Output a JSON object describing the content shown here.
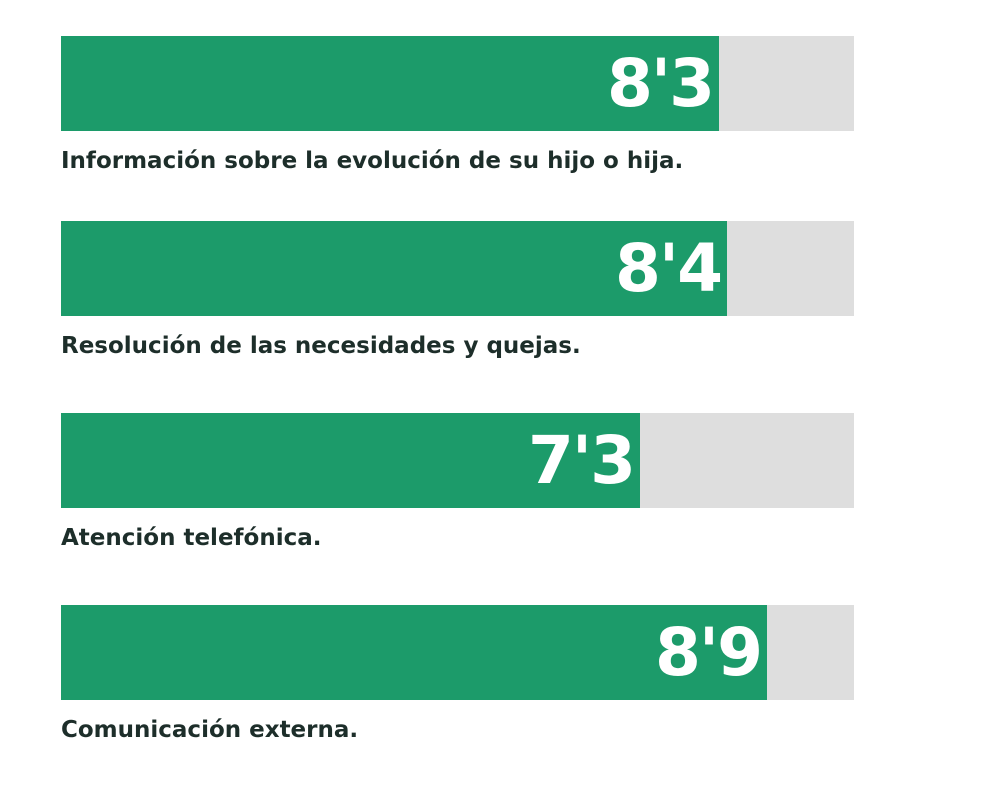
{
  "chart_data": {
    "type": "bar",
    "orientation": "horizontal",
    "categories": [
      "Información sobre la evolución de su hijo o hija.",
      "Resolución de las necesidades y quejas.",
      "Atención telefónica.",
      "Comunicación externa."
    ],
    "values": [
      8.3,
      8.4,
      7.3,
      8.9
    ],
    "value_labels": [
      "8'3",
      "8'4",
      "7'3",
      "8'9"
    ],
    "xlim": [
      0,
      10
    ],
    "grid": false,
    "legend": "none",
    "colors": {
      "bar": "#1c9b6a",
      "track": "#dedede",
      "value_text": "#ffffff",
      "label_text": "#1d2e2a"
    }
  }
}
